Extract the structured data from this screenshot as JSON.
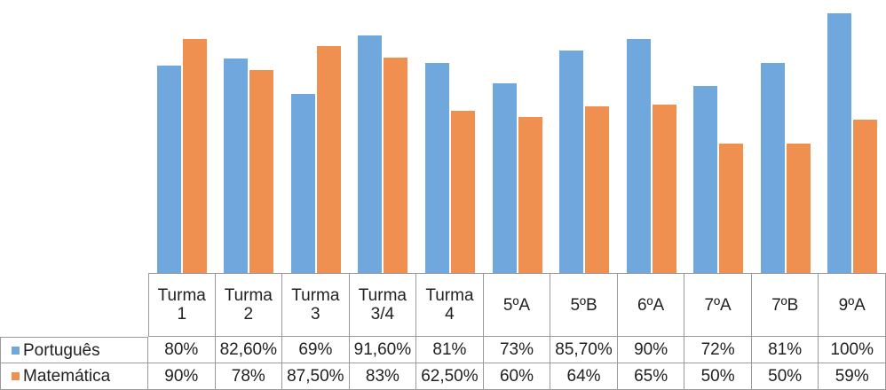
{
  "chart_data": {
    "type": "bar",
    "categories": [
      "Turma 1",
      "Turma 2",
      "Turma 3",
      "Turma 3/4",
      "Turma 4",
      "5ºA",
      "5ºB",
      "6ºA",
      "7ºA",
      "7ºB",
      "9ºA"
    ],
    "series": [
      {
        "name": "Português",
        "color": "#70a7dc",
        "values": [
          80,
          82.6,
          69,
          91.6,
          81,
          73,
          85.7,
          90,
          72,
          81,
          100
        ],
        "value_labels": [
          "80%",
          "82,60%",
          "69%",
          "91,60%",
          "81%",
          "73%",
          "85,70%",
          "90%",
          "72%",
          "81%",
          "100%"
        ]
      },
      {
        "name": "Matemática",
        "color": "#f09050",
        "values": [
          90,
          78,
          87.5,
          83,
          62.5,
          60,
          64,
          65,
          50,
          50,
          59
        ],
        "value_labels": [
          "90%",
          "78%",
          "87,50%",
          "83%",
          "62,50%",
          "60%",
          "64%",
          "65%",
          "50%",
          "50%",
          "59%"
        ]
      }
    ],
    "ylim": [
      0,
      100
    ]
  }
}
